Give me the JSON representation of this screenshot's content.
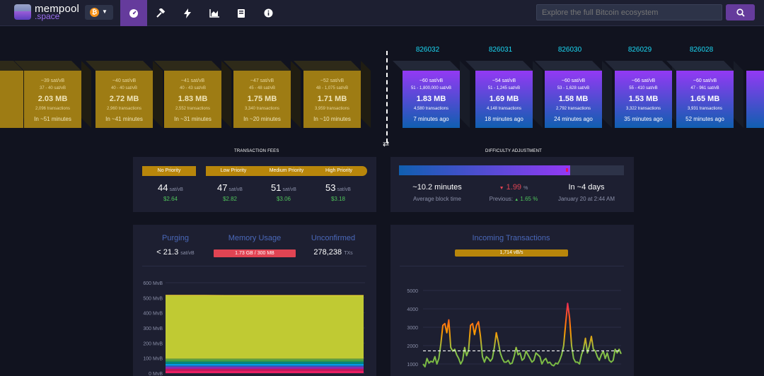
{
  "header": {
    "logo_line1": "mempool",
    "logo_line2": ".space",
    "network_symbol": "₿",
    "nav_icons": [
      "tachometer-icon",
      "hammer-icon",
      "lightning-icon",
      "chart-area-icon",
      "book-icon",
      "info-icon"
    ],
    "search_placeholder": "Explore the full Bitcoin ecosystem"
  },
  "pending_blocks": [
    {
      "fee_median": "",
      "fee_range": "",
      "size": "",
      "txs": "",
      "eta": "utes"
    },
    {
      "fee_median": "~39 sat/vB",
      "fee_range": "37 - 40 sat/vB",
      "size": "2.03 MB",
      "txs": "2,096 transactions",
      "eta": "In ~51 minutes"
    },
    {
      "fee_median": "~40 sat/vB",
      "fee_range": "40 - 40 sat/vB",
      "size": "2.72 MB",
      "txs": "2,960 transactions",
      "eta": "In ~41 minutes"
    },
    {
      "fee_median": "~41 sat/vB",
      "fee_range": "40 - 43 sat/vB",
      "size": "1.83 MB",
      "txs": "2,552 transactions",
      "eta": "In ~31 minutes"
    },
    {
      "fee_median": "~47 sat/vB",
      "fee_range": "45 - 48 sat/vB",
      "size": "1.75 MB",
      "txs": "3,340 transactions",
      "eta": "In ~20 minutes"
    },
    {
      "fee_median": "~52 sat/vB",
      "fee_range": "48 - 1,075 sat/vB",
      "size": "1.71 MB",
      "txs": "3,959 transactions",
      "eta": "In ~10 minutes"
    }
  ],
  "mined_blocks": [
    {
      "height": "826032",
      "fee_median": "~60 sat/vB",
      "fee_range": "51 - 1,800,000 sat/vB",
      "size": "1.83 MB",
      "txs": "4,580 transactions",
      "ago": "7 minutes ago"
    },
    {
      "height": "826031",
      "fee_median": "~54 sat/vB",
      "fee_range": "51 - 1,245 sat/vB",
      "size": "1.69 MB",
      "txs": "4,148 transactions",
      "ago": "18 minutes ago"
    },
    {
      "height": "826030",
      "fee_median": "~60 sat/vB",
      "fee_range": "53 - 1,628 sat/vB",
      "size": "1.58 MB",
      "txs": "2,792 transactions",
      "ago": "24 minutes ago"
    },
    {
      "height": "826029",
      "fee_median": "~66 sat/vB",
      "fee_range": "55 - 410 sat/vB",
      "size": "1.53 MB",
      "txs": "3,322 transactions",
      "ago": "35 minutes ago"
    },
    {
      "height": "826028",
      "fee_median": "~60 sat/vB",
      "fee_range": "47 - 961 sat/vB",
      "size": "1.65 MB",
      "txs": "3,931 transactions",
      "ago": "52 minutes ago"
    }
  ],
  "transaction_fees": {
    "title": "TRANSACTION FEES",
    "labels": [
      "No Priority",
      "Low Priority",
      "Medium Priority",
      "High Priority"
    ],
    "values": [
      "44",
      "47",
      "51",
      "53"
    ],
    "unit": "sat/vB",
    "usd": [
      "$2.64",
      "$2.82",
      "$3.06",
      "$3.18"
    ]
  },
  "difficulty": {
    "title": "DIFFICULTY ADJUSTMENT",
    "progress": 0.76,
    "avg_block_time": "~10.2 minutes",
    "avg_block_time_label": "Average block time",
    "change_arrow": "▼",
    "change": "1.99",
    "change_unit": "%",
    "previous_label": "Previous:",
    "previous_arrow": "▲",
    "previous": "1.65",
    "previous_unit": "%",
    "eta": "In ~4 days",
    "eta_date": "January 20 at 2:44 AM"
  },
  "mempool": {
    "purging_label": "Purging",
    "purging_value": "< 21.3",
    "purging_unit": "sat/vB",
    "memory_label": "Memory Usage",
    "memory_value": "1.73 GB / 300 MB",
    "unconfirmed_label": "Unconfirmed",
    "unconfirmed_value": "278,238",
    "unconfirmed_unit": "TXs"
  },
  "incoming": {
    "title": "Incoming Transactions",
    "rate": "1,714 vB/s"
  },
  "colors": {
    "accent": "#653b9c",
    "pending_block": "#9e7c14",
    "mined_top": "#9339f4",
    "mined_bottom": "#105fb0",
    "block_height": "#1bd8f4",
    "positive": "#4fc35b",
    "negative": "#e14453"
  },
  "chart_data": [
    {
      "type": "area",
      "yticks": [
        "600 MvB",
        "500 MvB",
        "400 MvB",
        "300 MvB",
        "200 MvB",
        "100 MvB",
        "0 MvB"
      ],
      "ylim": [
        0,
        600
      ],
      "x": [
        0,
        1,
        2,
        3,
        4,
        5,
        6,
        7,
        8,
        9,
        10
      ],
      "series": [
        {
          "color": "#e91e63",
          "values": [
            16,
            16,
            16,
            16,
            16,
            16,
            16,
            16,
            16,
            16,
            16
          ]
        },
        {
          "color": "#c2185b",
          "values": [
            13,
            13,
            13,
            13,
            13,
            13,
            13,
            13,
            13,
            13,
            13
          ]
        },
        {
          "color": "#9c27b0",
          "values": [
            11,
            11,
            11,
            11,
            11,
            11,
            11,
            11,
            11,
            11,
            11
          ]
        },
        {
          "color": "#3f51b5",
          "values": [
            10,
            10,
            10,
            10,
            10,
            10,
            10,
            10,
            10,
            10,
            10
          ]
        },
        {
          "color": "#039be5",
          "values": [
            12,
            12,
            12,
            12,
            12,
            12,
            12,
            12,
            12,
            12,
            12
          ]
        },
        {
          "color": "#00897b",
          "values": [
            15,
            15,
            15,
            15,
            15,
            15,
            15,
            15,
            15,
            15,
            15
          ]
        },
        {
          "color": "#43a047",
          "values": [
            13,
            13,
            13,
            13,
            13,
            13,
            13,
            13,
            13,
            13,
            13
          ]
        },
        {
          "color": "#7cb342",
          "values": [
            7,
            7,
            7,
            7,
            7,
            7,
            7,
            7,
            7,
            7,
            7
          ]
        },
        {
          "color": "#c0ca33",
          "values": [
            417,
            417,
            417,
            416,
            416,
            416,
            416,
            416,
            416,
            416,
            416
          ]
        },
        {
          "color": "#fdd835",
          "values": [
            5,
            5,
            5,
            5,
            5,
            5,
            5,
            5,
            5,
            5,
            5
          ]
        }
      ]
    },
    {
      "type": "line",
      "yticks": [
        "5000",
        "4000",
        "3000",
        "2000",
        "1000"
      ],
      "ylim": [
        500,
        5500
      ],
      "reference": 1714,
      "values": [
        1000,
        850,
        1300,
        1050,
        1150,
        1100,
        1400,
        1000,
        1300,
        2100,
        3100,
        3200,
        2700,
        3400,
        1900,
        1700,
        1800,
        1500,
        1300,
        1000,
        1200,
        1900,
        1450,
        1750,
        3100,
        3200,
        2600,
        3100,
        3300,
        2500,
        1400,
        1100,
        1400,
        1300,
        1150,
        1300,
        1900,
        2700,
        2200,
        1600,
        1300,
        1100,
        1100,
        1200,
        1000,
        1050,
        1400,
        1900,
        1500,
        1600,
        1200,
        1300,
        1700,
        1500,
        1300,
        1100,
        1200,
        1600,
        1500,
        1400,
        1000,
        1200,
        1300,
        1050,
        1100,
        950,
        900,
        1050,
        1000,
        1200,
        1500,
        2000,
        3200,
        4300,
        3500,
        2000,
        1300,
        1100,
        1100,
        1000,
        1500,
        1800,
        2400,
        1600,
        2000,
        2500,
        1800,
        1700,
        1400,
        1200,
        1500,
        1700,
        1300,
        1600,
        1200,
        1100,
        1200,
        1800,
        1600,
        1800,
        1550
      ]
    }
  ]
}
